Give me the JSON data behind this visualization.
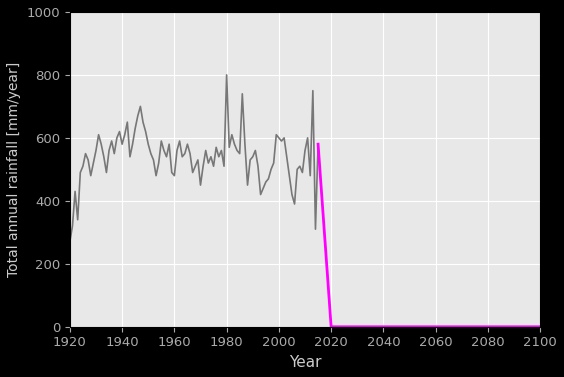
{
  "xlabel": "Year",
  "ylabel": "Total annual rainfall [mm/year]",
  "xlim": [
    1920,
    2100
  ],
  "ylim": [
    0,
    1000
  ],
  "xticks": [
    1920,
    1940,
    1960,
    1980,
    2000,
    2020,
    2040,
    2060,
    2080,
    2100
  ],
  "yticks": [
    0,
    200,
    400,
    600,
    800,
    1000
  ],
  "historical_color": "#777777",
  "future_color": "#ff00ff",
  "plot_bg_color": "#e8e8e8",
  "fig_bg_color": "#000000",
  "label_color": "#cccccc",
  "tick_color": "#aaaaaa",
  "grid_color": "#ffffff",
  "historical_linewidth": 1.2,
  "future_linewidth": 2.0,
  "figsize": [
    5.64,
    3.77
  ],
  "dpi": 100,
  "hist_years": [
    1920,
    1921,
    1922,
    1923,
    1924,
    1925,
    1926,
    1927,
    1928,
    1929,
    1930,
    1931,
    1932,
    1933,
    1934,
    1935,
    1936,
    1937,
    1938,
    1939,
    1940,
    1941,
    1942,
    1943,
    1944,
    1945,
    1946,
    1947,
    1948,
    1949,
    1950,
    1951,
    1952,
    1953,
    1954,
    1955,
    1956,
    1957,
    1958,
    1959,
    1960,
    1961,
    1962,
    1963,
    1964,
    1965,
    1966,
    1967,
    1968,
    1969,
    1970,
    1971,
    1972,
    1973,
    1974,
    1975,
    1976,
    1977,
    1978,
    1979,
    1980,
    1981,
    1982,
    1983,
    1984,
    1985,
    1986,
    1987,
    1988,
    1989,
    1990,
    1991,
    1992,
    1993,
    1994,
    1995,
    1996,
    1997,
    1998,
    1999,
    2000,
    2001,
    2002,
    2003,
    2004,
    2005,
    2006,
    2007,
    2008,
    2009,
    2010,
    2011,
    2012,
    2013,
    2014,
    2015
  ],
  "hist_values": [
    270,
    320,
    430,
    340,
    490,
    510,
    550,
    530,
    480,
    520,
    560,
    610,
    580,
    540,
    490,
    560,
    590,
    550,
    600,
    620,
    580,
    610,
    650,
    540,
    580,
    630,
    670,
    700,
    650,
    620,
    580,
    550,
    530,
    480,
    520,
    590,
    560,
    540,
    580,
    490,
    480,
    560,
    590,
    540,
    550,
    580,
    550,
    490,
    510,
    530,
    450,
    510,
    560,
    520,
    540,
    510,
    570,
    540,
    560,
    510,
    800,
    570,
    610,
    580,
    560,
    550,
    740,
    580,
    450,
    530,
    540,
    560,
    510,
    420,
    440,
    460,
    470,
    500,
    520,
    610,
    600,
    590,
    600,
    540,
    480,
    420,
    390,
    500,
    510,
    490,
    560,
    600,
    480,
    750,
    310,
    580
  ],
  "future_years": [
    2015,
    2020,
    2021,
    2100
  ],
  "future_values": [
    580,
    0,
    0,
    0
  ]
}
